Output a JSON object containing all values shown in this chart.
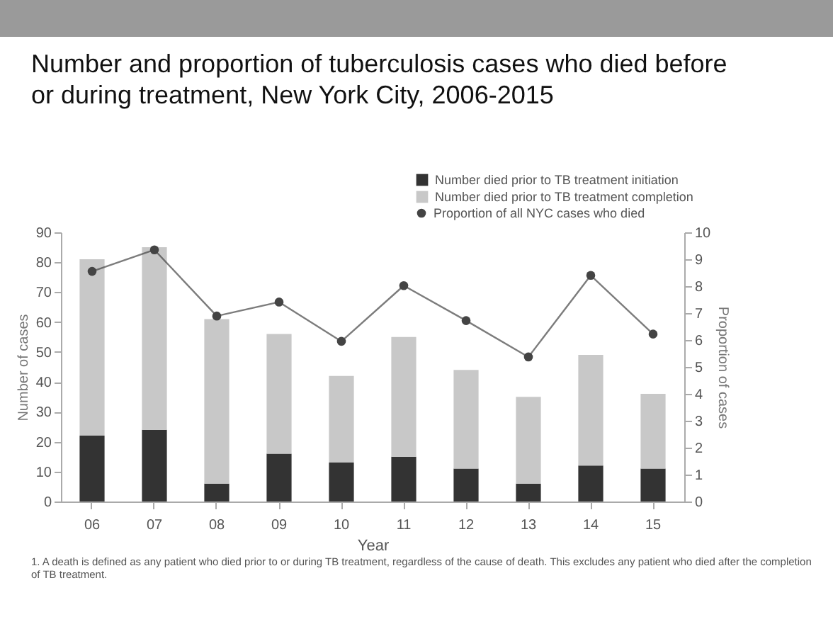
{
  "chart_data": {
    "type": "bar",
    "title": "Number and proportion of tuberculosis cases who died before or during treatment, New York City, 2006-2015",
    "xlabel": "Year",
    "ylabel": "Number of cases",
    "y2label": "Proportion of cases",
    "categories": [
      "06",
      "07",
      "08",
      "09",
      "10",
      "11",
      "12",
      "13",
      "14",
      "15"
    ],
    "stacked": true,
    "legend": "top right",
    "ylim": [
      0,
      90
    ],
    "yticks": [
      0,
      10,
      20,
      30,
      40,
      50,
      60,
      70,
      80,
      90
    ],
    "y2lim": [
      0,
      10
    ],
    "y2ticks": [
      0,
      1,
      2,
      3,
      4,
      5,
      6,
      7,
      8,
      9,
      10
    ],
    "series": [
      {
        "name": "Number died prior to TB treatment initiation",
        "color": "#333333",
        "values": [
          22,
          24,
          6,
          16,
          13,
          15,
          11,
          6,
          12,
          11
        ]
      },
      {
        "name": "Number died prior to TB treatment completion",
        "color": "#c8c8c8",
        "values": [
          59,
          61,
          55,
          40,
          29,
          40,
          33,
          29,
          37,
          25
        ]
      },
      {
        "name": "Proportion of all NYC cases who died",
        "type": "line",
        "axis": "y2",
        "marker": "circle",
        "color": "#444444",
        "values": [
          8.55,
          9.35,
          6.89,
          7.41,
          5.95,
          8.02,
          6.72,
          5.37,
          8.4,
          6.22
        ]
      }
    ],
    "annotations": [
      "1. A death is defined as any patient who died prior to or during TB treatment, regardless of the cause of death. This excludes any patient who died after the completion of TB treatment."
    ]
  }
}
